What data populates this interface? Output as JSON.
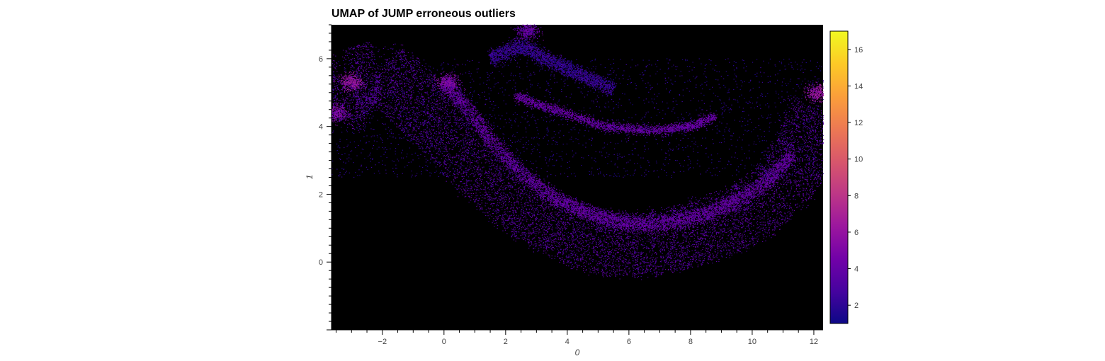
{
  "chart_data": {
    "type": "heatmap",
    "title": "UMAP of JUMP erroneous outliers",
    "xlabel": "0",
    "ylabel": "1",
    "xlim": [
      -3.65,
      12.3
    ],
    "ylim": [
      -2.0,
      7.0
    ],
    "xticks": [
      -2,
      0,
      2,
      4,
      6,
      8,
      10,
      12
    ],
    "xtick_labels": [
      "−2",
      "0",
      "2",
      "4",
      "6",
      "8",
      "10",
      "12"
    ],
    "yticks": [
      0,
      2,
      4,
      6
    ],
    "ytick_labels": [
      "0",
      "2",
      "4",
      "6"
    ],
    "background": "#000000",
    "colormap": "plasma",
    "colorbar": {
      "range": [
        1,
        17
      ],
      "ticks": [
        2,
        4,
        6,
        8,
        10,
        12,
        14,
        16
      ],
      "tick_labels": [
        "2",
        "4",
        "6",
        "8",
        "10",
        "12",
        "14",
        "16"
      ],
      "colors": [
        "#0d0887",
        "#46039f",
        "#7201a8",
        "#9c179e",
        "#bd3786",
        "#d8576b",
        "#ed7953",
        "#fb9f3a",
        "#fdca26",
        "#f0f921"
      ]
    },
    "density_regions": [
      {
        "name": "outer-arc",
        "points": [
          [
            -3.6,
            4.3
          ],
          [
            -3.0,
            5.4
          ],
          [
            -2.0,
            5.6
          ],
          [
            -1.0,
            4.8
          ],
          [
            0.0,
            3.9
          ],
          [
            1.0,
            2.9
          ],
          [
            2.0,
            2.0
          ],
          [
            3.0,
            1.4
          ],
          [
            4.0,
            0.9
          ],
          [
            5.0,
            0.6
          ],
          [
            6.0,
            0.5
          ],
          [
            7.0,
            0.6
          ],
          [
            8.0,
            0.8
          ],
          [
            9.0,
            1.1
          ],
          [
            10.0,
            1.5
          ],
          [
            11.0,
            2.3
          ],
          [
            11.7,
            3.3
          ],
          [
            12.1,
            4.6
          ]
        ],
        "width": 1.9,
        "level": 2.5
      },
      {
        "name": "middle-arc",
        "points": [
          [
            0.0,
            5.3
          ],
          [
            0.7,
            4.6
          ],
          [
            1.5,
            3.6
          ],
          [
            2.5,
            2.6
          ],
          [
            3.5,
            1.9
          ],
          [
            4.5,
            1.5
          ],
          [
            5.5,
            1.2
          ],
          [
            6.5,
            1.1
          ],
          [
            7.5,
            1.2
          ],
          [
            8.5,
            1.4
          ],
          [
            9.5,
            1.8
          ],
          [
            10.5,
            2.4
          ],
          [
            11.3,
            3.2
          ]
        ],
        "width": 0.35,
        "level": 3.0
      },
      {
        "name": "inner-arc",
        "points": [
          [
            2.3,
            4.9
          ],
          [
            3.2,
            4.6
          ],
          [
            4.2,
            4.3
          ],
          [
            5.2,
            4.0
          ],
          [
            6.2,
            3.9
          ],
          [
            7.2,
            3.9
          ],
          [
            8.0,
            4.0
          ],
          [
            8.8,
            4.3
          ]
        ],
        "width": 0.15,
        "level": 3.0
      },
      {
        "name": "upper-wing",
        "points": [
          [
            1.5,
            6.0
          ],
          [
            2.5,
            6.4
          ],
          [
            3.5,
            5.9
          ],
          [
            4.5,
            5.5
          ],
          [
            5.5,
            5.1
          ]
        ],
        "width": 0.35,
        "level": 1.5
      }
    ],
    "hotspots": [
      [
        -3.0,
        5.3,
        7
      ],
      [
        0.1,
        5.3,
        6
      ],
      [
        12.1,
        5.0,
        7
      ],
      [
        2.7,
        6.8,
        5
      ],
      [
        -3.5,
        4.4,
        6
      ]
    ]
  }
}
